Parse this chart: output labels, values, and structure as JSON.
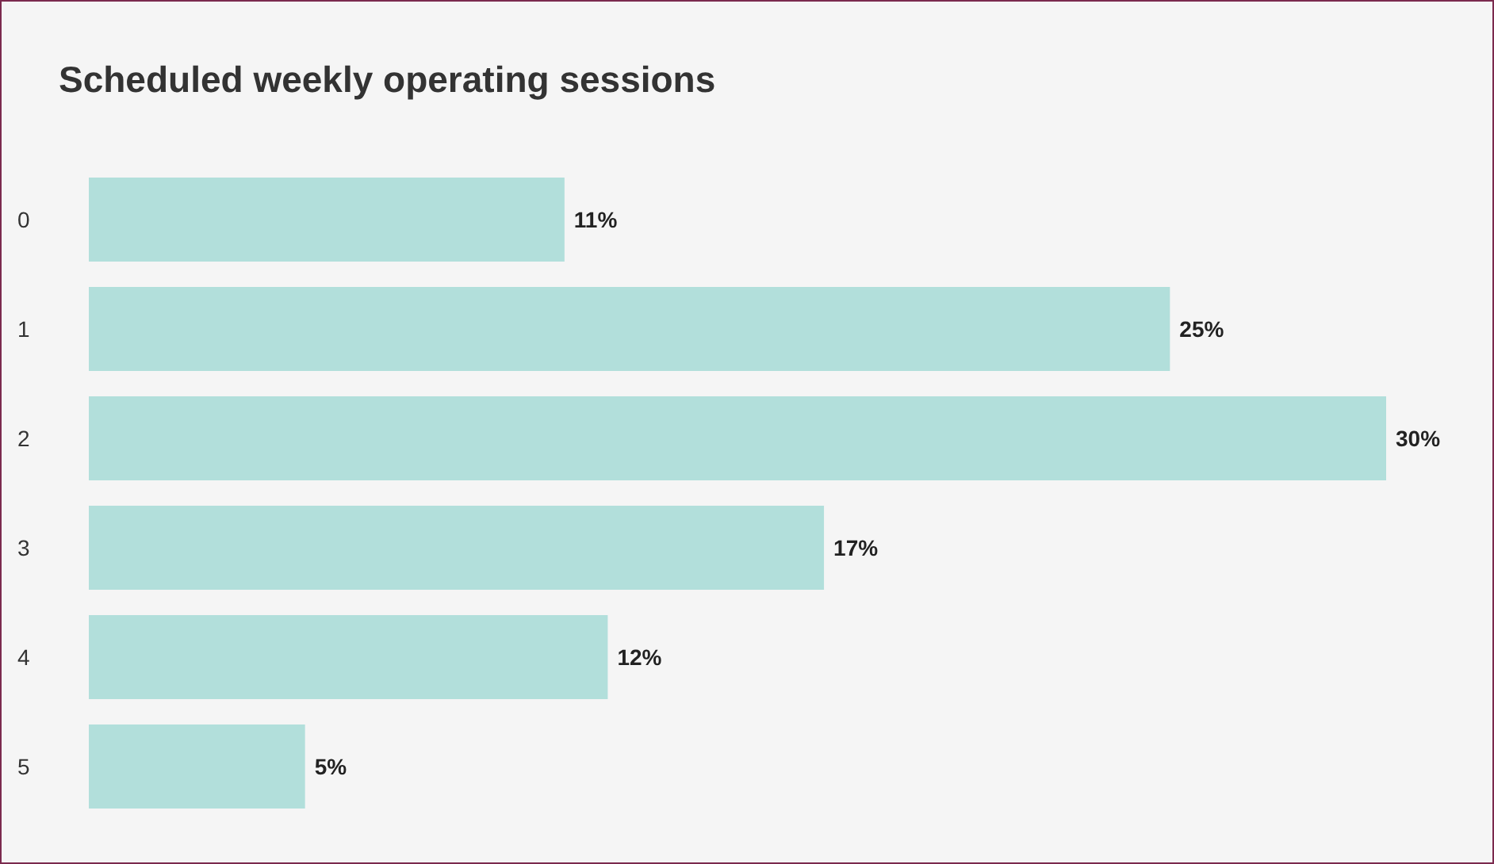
{
  "chart_data": {
    "type": "bar",
    "orientation": "horizontal",
    "title": "Scheduled weekly operating sessions",
    "categories": [
      "0",
      "1",
      "2",
      "3",
      "4",
      "5"
    ],
    "values": [
      11,
      25,
      30,
      17,
      12,
      5
    ],
    "value_labels": [
      "11%",
      "25%",
      "30%",
      "17%",
      "12%",
      "5%"
    ],
    "color": "#b2dfdb",
    "xlim": [
      0,
      30
    ],
    "grid": false,
    "legend": false
  }
}
